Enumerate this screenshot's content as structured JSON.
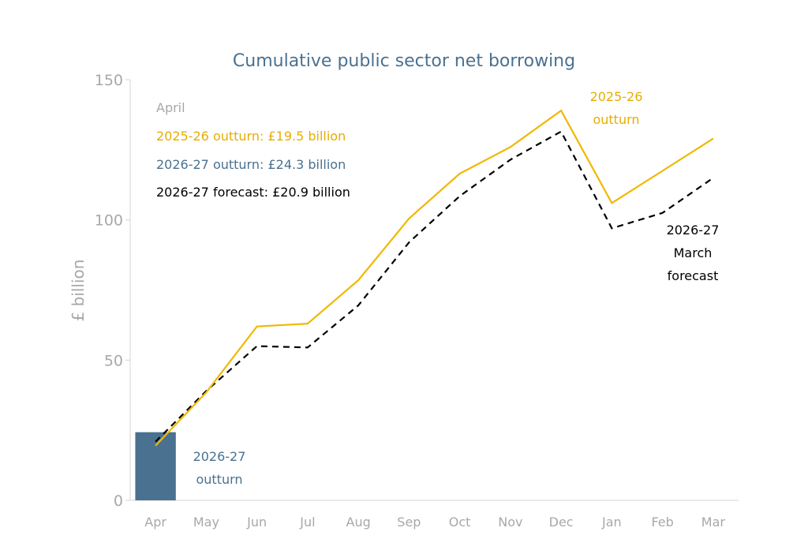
{
  "chart_data": {
    "type": "line",
    "title": "Cumulative public sector net borrowing",
    "ylabel": "£ billion",
    "xlabel": "",
    "ylim": [
      0,
      150
    ],
    "yticks": [
      0,
      50,
      100,
      150
    ],
    "grid": false,
    "categories": [
      "Apr",
      "May",
      "Jun",
      "Jul",
      "Aug",
      "Sep",
      "Oct",
      "Nov",
      "Dec",
      "Jan",
      "Feb",
      "Mar"
    ],
    "series": [
      {
        "name": "2025-26 outturn",
        "style": "solid",
        "color": "#f0b800",
        "values": [
          19.5,
          38.5,
          62.0,
          63.0,
          78.5,
          100.5,
          116.5,
          126.0,
          139.0,
          106.0,
          117.5,
          129.0
        ]
      },
      {
        "name": "2026-27 March forecast",
        "style": "dashed",
        "color": "#000000",
        "values": [
          20.9,
          39.0,
          55.0,
          54.5,
          69.5,
          92.0,
          108.5,
          121.5,
          131.5,
          97.0,
          102.5,
          115.0
        ]
      }
    ],
    "bars": [
      {
        "name": "2026-27 outturn",
        "category": "Apr",
        "value": 24.3,
        "color": "#4a7190"
      }
    ],
    "annotations": {
      "legend_heading": "April",
      "legend_lines": [
        {
          "text": "2025-26 outturn: £19.5 billion",
          "color": "#e6ad00"
        },
        {
          "text": "2026-27 outturn: £24.3 billion",
          "color": "#4a7190"
        },
        {
          "text": "2026-27 forecast: £20.9 billion",
          "color": "#000000"
        }
      ],
      "label_2025_line1": "2025-26",
      "label_2025_line2": "outturn",
      "label_forecast_line1": "2026-27",
      "label_forecast_line2": "March",
      "label_forecast_line3": "forecast",
      "label_bar_line1": "2026-27",
      "label_bar_line2": "outturn"
    },
    "colors": {
      "heading": "#a8a8a8",
      "axis": "#d4d4d4"
    }
  }
}
